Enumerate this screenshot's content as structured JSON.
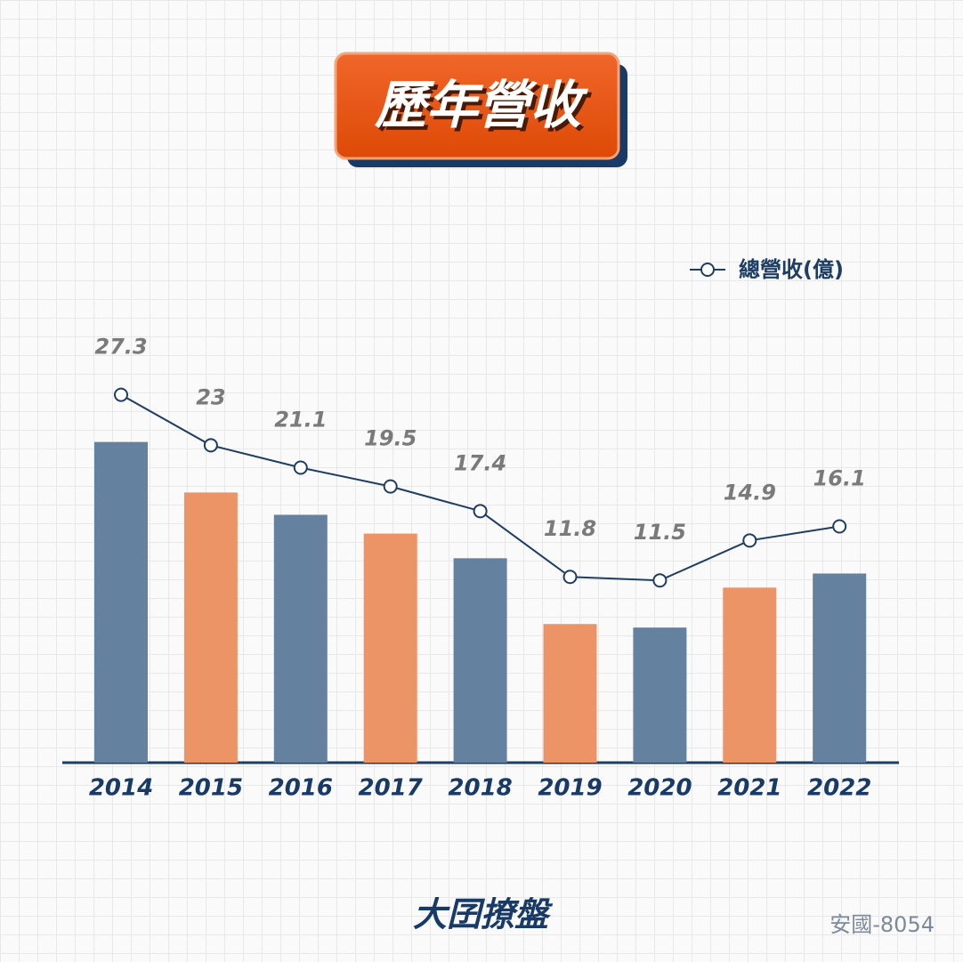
{
  "chart_data": {
    "type": "bar",
    "title": "歷年營收",
    "categories": [
      "2014",
      "2015",
      "2016",
      "2017",
      "2018",
      "2019",
      "2020",
      "2021",
      "2022"
    ],
    "series": [
      {
        "name": "總營收(億)",
        "color": "#1d3d63",
        "values": [
          27.3,
          23,
          21.1,
          19.5,
          17.4,
          11.8,
          11.5,
          14.9,
          16.1
        ]
      }
    ],
    "bar_colors": [
      "#64819f",
      "#ec9465",
      "#64819f",
      "#ec9465",
      "#64819f",
      "#ec9465",
      "#64819f",
      "#ec9465",
      "#64819f"
    ],
    "line_overlay": true,
    "logo": "大囝撩盤",
    "footer": "安國-8054"
  }
}
